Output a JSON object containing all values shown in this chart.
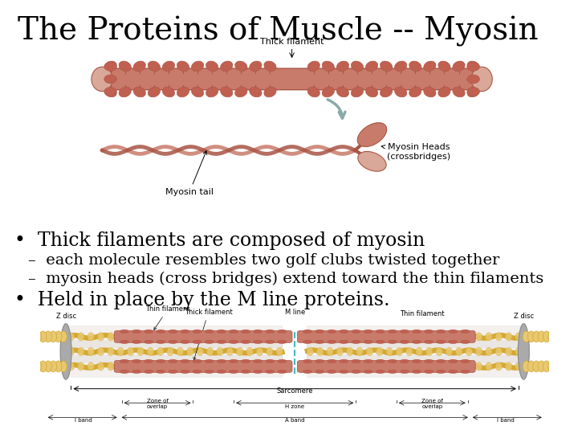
{
  "title": "The Proteins of Muscle -- Myosin",
  "title_fontsize": 28,
  "background_color": "#ffffff",
  "text_color": "#000000",
  "bullet1": "Thick filaments are composed of myosin",
  "bullet1_fontsize": 17,
  "sub1": "–  each molecule resembles two golf clubs twisted together",
  "sub1_fontsize": 14,
  "sub2": "–  myosin heads (cross bridges) extend toward the thin filaments",
  "sub2_fontsize": 14,
  "bullet2": "Held in place by the M line proteins.",
  "bullet2_fontsize": 17,
  "salmon": "#C97B6B",
  "salmon_light": "#D9A898",
  "salmon_dark": "#A85545",
  "head_color": "#C06050",
  "gold": "#D4A830",
  "gold_light": "#E8C870",
  "gray_arrow": "#8AAAA8",
  "cyan_line": "#40B8C0"
}
